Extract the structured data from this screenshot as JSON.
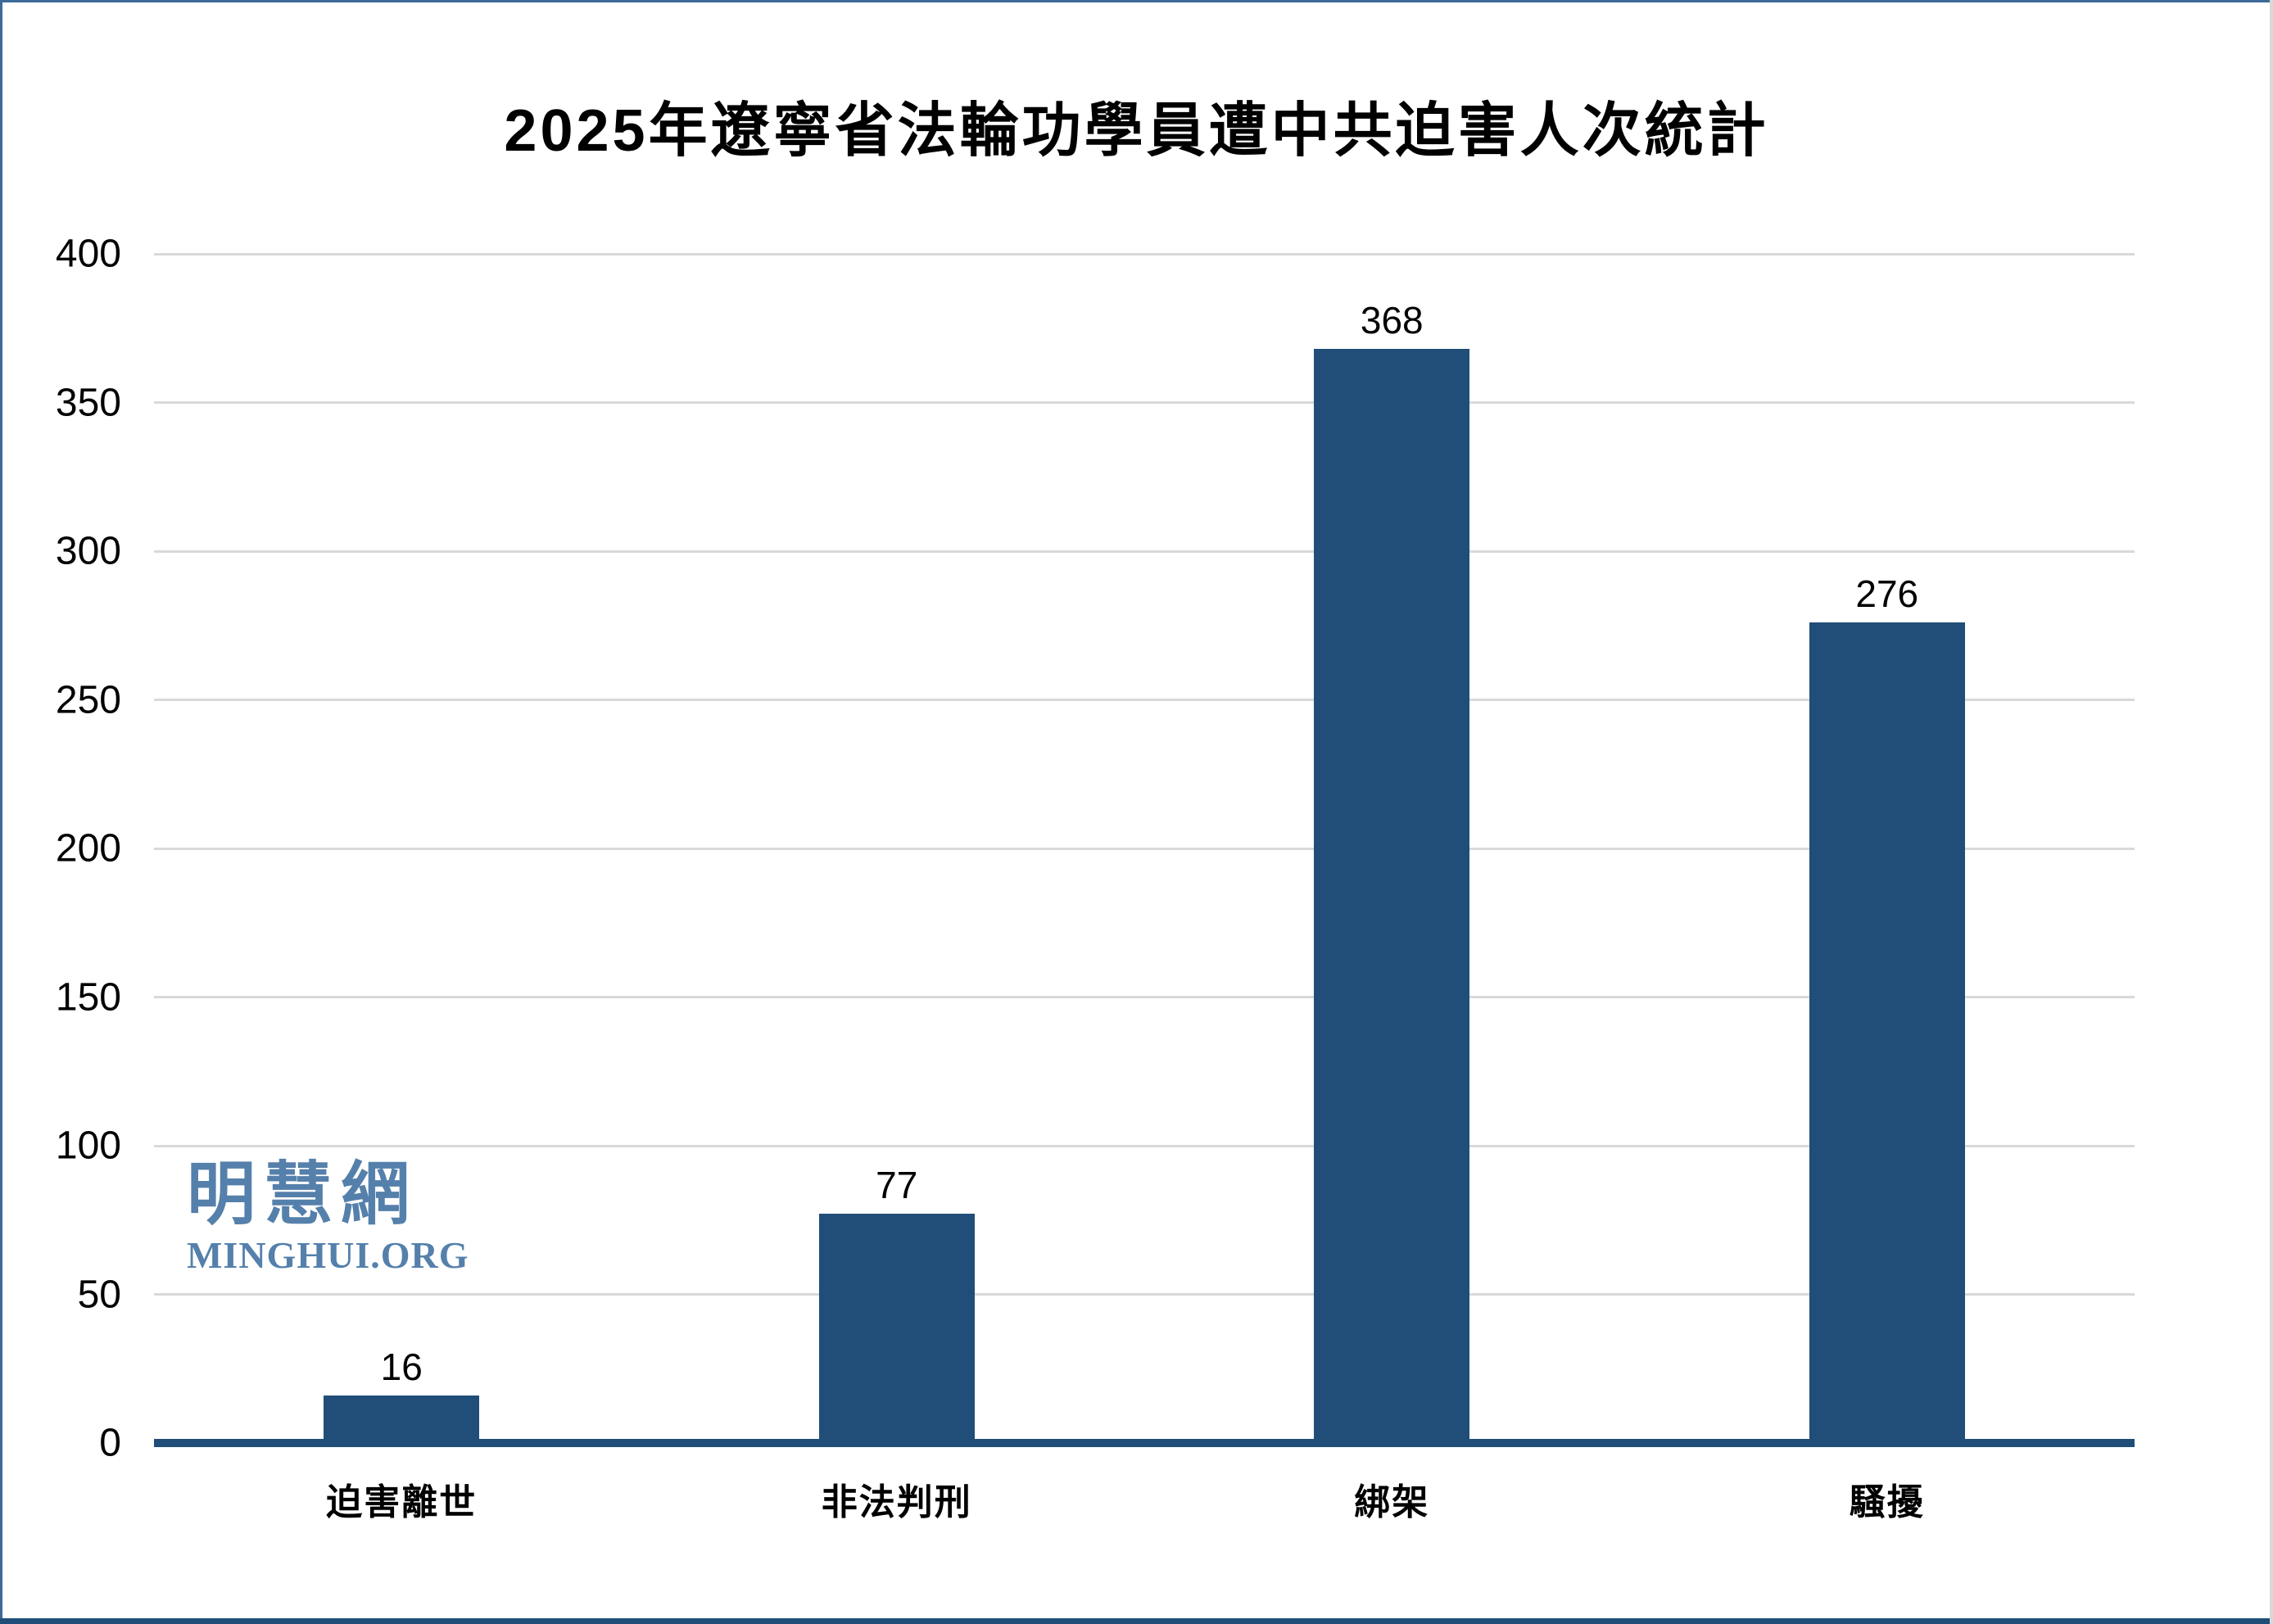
{
  "title": "2025年遼寧省法輪功學員遭中共迫害人次統計",
  "watermark": {
    "hanzi": "明慧網",
    "latin": "MINGHUI.ORG",
    "color": "#5580AB"
  },
  "frame": {
    "border_color": "#3D6A99",
    "footer_bar_color": "#1F4E79"
  },
  "chart_data": {
    "type": "bar",
    "title": "2025年遼寧省法輪功學員遭中共迫害人次統計",
    "categories": [
      "迫害離世",
      "非法判刑",
      "綁架",
      "騷擾"
    ],
    "values": [
      16,
      77,
      368,
      276
    ],
    "xlabel": "",
    "ylabel": "",
    "ylim": [
      0,
      400
    ],
    "ytick_step": 50,
    "grid": true,
    "legend": false,
    "data_labels": true,
    "bar_color": "#204E78",
    "axis_color": "#204E78",
    "gridline_color": "#D9D9D9",
    "label_color": "#000000"
  }
}
